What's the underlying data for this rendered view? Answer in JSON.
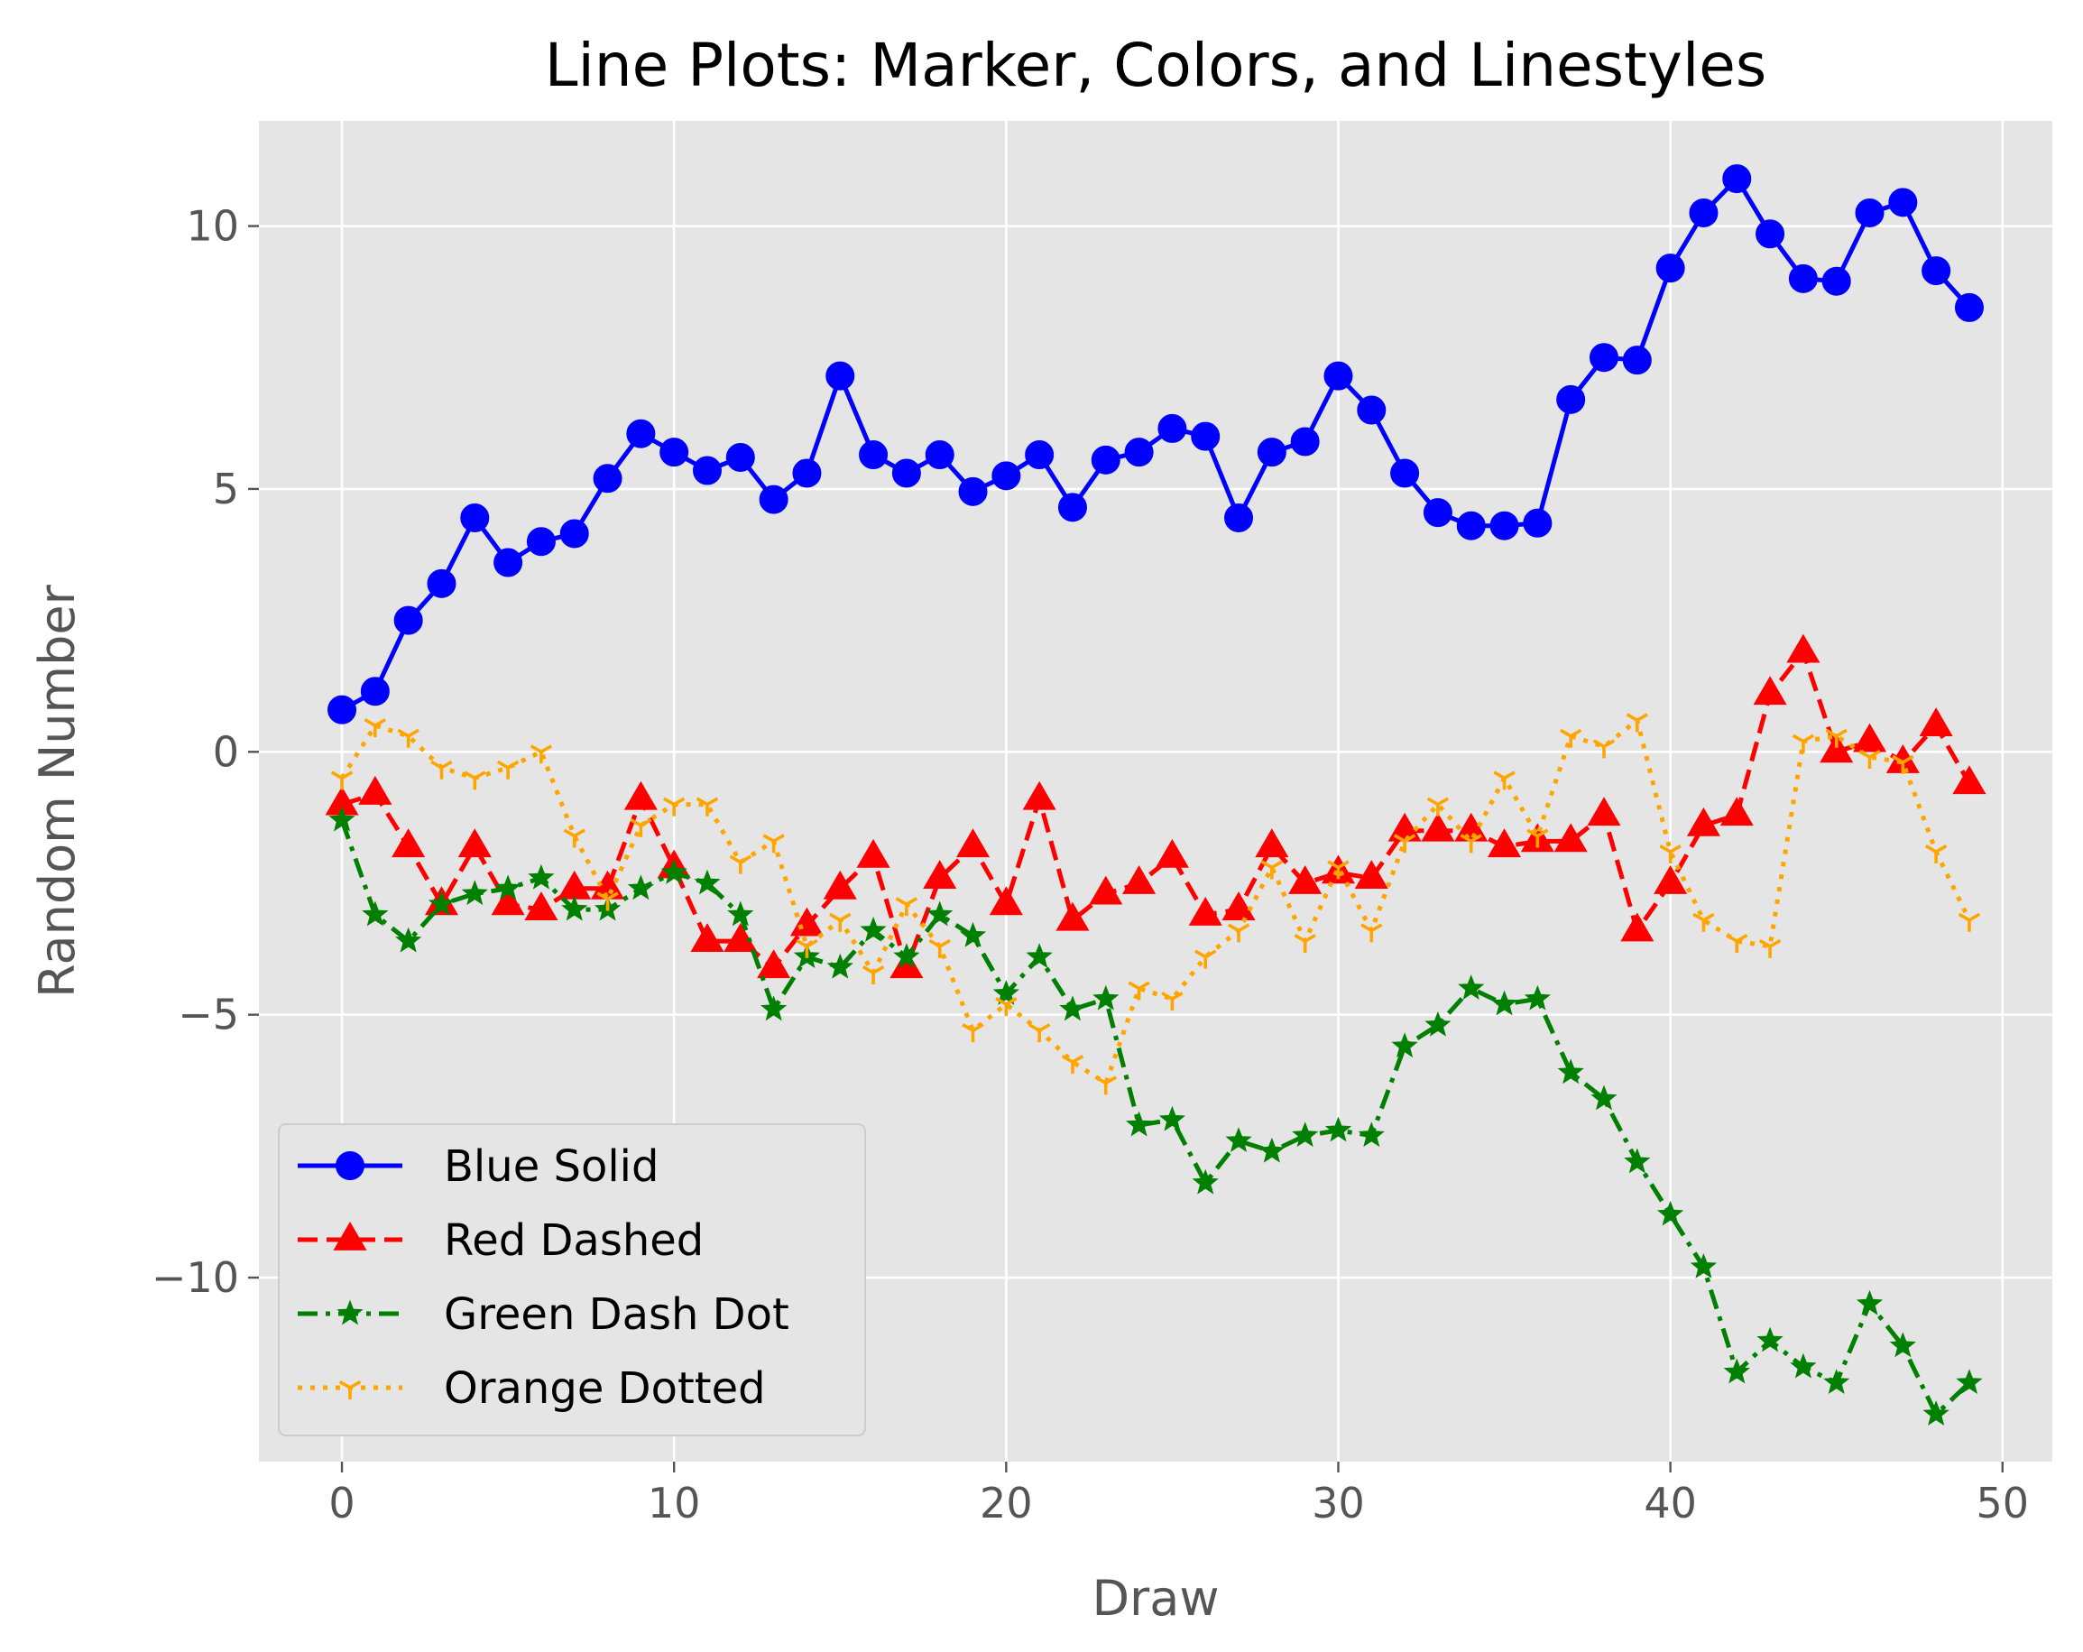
{
  "chart_data": {
    "type": "line",
    "title": "Line Plots: Marker, Colors, and Linestyles",
    "xlabel": "Draw",
    "ylabel": "Random Number",
    "xlim": [
      -2.5,
      51.5
    ],
    "ylim": [
      -13.5,
      12
    ],
    "xticks": [
      0,
      10,
      20,
      30,
      40,
      50
    ],
    "yticks": [
      -10,
      -5,
      0,
      5,
      10
    ],
    "ytick_labels": [
      "−10",
      "−5",
      "0",
      "5",
      "10"
    ],
    "xtick_labels": [
      "0",
      "10",
      "20",
      "30",
      "40",
      "50"
    ],
    "grid": true,
    "legend_position": "lower-left",
    "style": {
      "plot_background": "#e5e5e5",
      "grid_color": "#ffffff"
    },
    "x": [
      0,
      1,
      2,
      3,
      4,
      5,
      6,
      7,
      8,
      9,
      10,
      11,
      12,
      13,
      14,
      15,
      16,
      17,
      18,
      19,
      20,
      21,
      22,
      23,
      24,
      25,
      26,
      27,
      28,
      29,
      30,
      31,
      32,
      33,
      34,
      35,
      36,
      37,
      38,
      39,
      40,
      41,
      42,
      43,
      44,
      45,
      46,
      47,
      48,
      49
    ],
    "series": [
      {
        "name": "Blue Solid",
        "color": "#0000ff",
        "linestyle": "solid",
        "marker": "circle",
        "values": [
          0.8,
          1.15,
          2.5,
          3.2,
          4.45,
          3.6,
          4.0,
          4.15,
          5.2,
          6.05,
          5.7,
          5.35,
          5.6,
          4.8,
          5.3,
          7.15,
          5.65,
          5.3,
          5.65,
          4.95,
          5.25,
          5.65,
          4.65,
          5.55,
          5.7,
          6.15,
          6.0,
          4.45,
          5.7,
          5.9,
          7.15,
          6.5,
          5.3,
          4.55,
          4.3,
          4.3,
          4.35,
          6.7,
          7.5,
          7.45,
          9.2,
          10.25,
          10.9,
          9.85,
          9.0,
          8.95,
          10.25,
          10.45,
          9.15,
          8.45
        ]
      },
      {
        "name": "Red Dashed",
        "color": "#ff0000",
        "linestyle": "dashed",
        "marker": "triangle",
        "values": [
          -1.0,
          -0.8,
          -1.8,
          -2.9,
          -1.8,
          -2.9,
          -3.0,
          -2.6,
          -2.6,
          -0.9,
          -2.2,
          -3.6,
          -3.6,
          -4.1,
          -3.3,
          -2.6,
          -2.0,
          -4.1,
          -2.4,
          -1.8,
          -2.9,
          -0.9,
          -3.2,
          -2.7,
          -2.5,
          -2.0,
          -3.1,
          -3.0,
          -1.8,
          -2.5,
          -2.3,
          -2.4,
          -1.5,
          -1.5,
          -1.5,
          -1.8,
          -1.7,
          -1.7,
          -1.2,
          -3.4,
          -2.5,
          -1.4,
          -1.2,
          1.1,
          1.9,
          0.0,
          0.2,
          -0.2,
          0.5,
          -0.6
        ]
      },
      {
        "name": "Green Dash Dot",
        "color": "#008000",
        "linestyle": "dashdot",
        "marker": "star",
        "values": [
          -1.3,
          -3.1,
          -3.6,
          -2.9,
          -2.7,
          -2.6,
          -2.4,
          -3.0,
          -3.0,
          -2.6,
          -2.3,
          -2.5,
          -3.1,
          -4.9,
          -3.9,
          -4.1,
          -3.4,
          -3.9,
          -3.1,
          -3.5,
          -4.6,
          -3.9,
          -4.9,
          -4.7,
          -7.1,
          -7.0,
          -8.2,
          -7.4,
          -7.6,
          -7.3,
          -7.2,
          -7.3,
          -5.6,
          -5.2,
          -4.5,
          -4.8,
          -4.7,
          -6.1,
          -6.6,
          -7.8,
          -8.8,
          -9.8,
          -11.8,
          -11.2,
          -11.7,
          -12.0,
          -10.5,
          -11.3,
          -12.6,
          -12.0
        ]
      },
      {
        "name": "Orange Dotted",
        "color": "#ffa500",
        "linestyle": "dotted",
        "marker": "tri_down",
        "values": [
          -0.5,
          0.5,
          0.3,
          -0.3,
          -0.5,
          -0.3,
          0.0,
          -1.6,
          -2.8,
          -1.4,
          -1.0,
          -1.0,
          -2.1,
          -1.7,
          -3.7,
          -3.2,
          -4.2,
          -2.9,
          -3.7,
          -5.3,
          -4.8,
          -5.3,
          -5.9,
          -6.3,
          -4.5,
          -4.7,
          -3.9,
          -3.4,
          -2.2,
          -3.6,
          -2.2,
          -3.4,
          -1.7,
          -1.0,
          -1.7,
          -0.5,
          -1.6,
          0.3,
          0.1,
          0.6,
          -1.9,
          -3.2,
          -3.6,
          -3.7,
          0.2,
          0.3,
          -0.1,
          -0.2,
          -1.9,
          -3.2
        ]
      }
    ]
  }
}
